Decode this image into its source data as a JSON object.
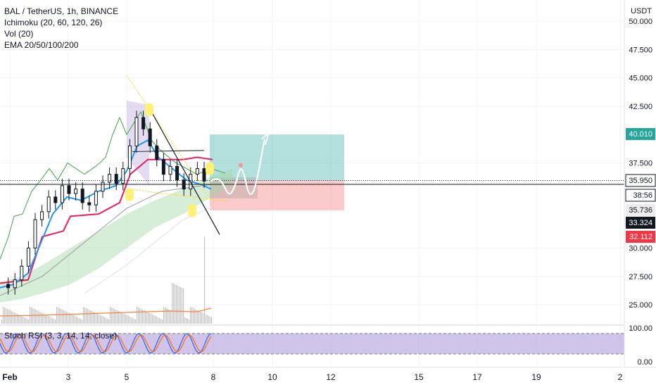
{
  "legend": {
    "symbol": "BAL / TetherUS, 1h, BINANCE",
    "ichimoku": "Ichimoku (20, 60, 120, 26)",
    "vol": "Vol (20)",
    "ema": "EMA 20/50/100/200"
  },
  "rsi_legend": "Stoch RSI (3, 3, 14, 14, close)",
  "currency": "USDT",
  "colors": {
    "background": "#ffffff",
    "up_candle": "#131722",
    "down_candle": "#131722",
    "tenkan": "#2196f3",
    "kijun": "#e91e63",
    "chikou": "#43a047",
    "cloud_up": "#a5d6a7",
    "cloud_down": "#ef9a9a",
    "ema20": "#2196f3",
    "ema200": "#e0e0e0",
    "volume": "#9e9e9e",
    "volume_ma": "#ff7f3f",
    "long_profit_zone": "#26a69a",
    "long_risk_zone": "#ef5350",
    "pattern_marker": "#fff176",
    "rsi_band": "#b39ddb",
    "rsi_k": "#2962ff",
    "rsi_d": "#ff6d00",
    "badge_green": "#26a69a",
    "badge_red": "#f23645",
    "badge_black": "#131722"
  },
  "chart_data": {
    "type": "candlestick",
    "title": "BAL / TetherUS, 1h, BINANCE",
    "y_unit": "USDT",
    "y_ticks": [
      "50.000",
      "47.500",
      "45.000",
      "42.500",
      "37.500",
      "30.000",
      "27.500",
      "25.000"
    ],
    "ylim": [
      23.5,
      51.0
    ],
    "x_ticks": [
      "Feb",
      "3",
      "5",
      "8",
      "10",
      "12",
      "15",
      "17",
      "19",
      "2"
    ],
    "close_path": [
      [
        0,
        26.8
      ],
      [
        1,
        26.5
      ],
      [
        2,
        27.2
      ],
      [
        3,
        28.4
      ],
      [
        4,
        30.0
      ],
      [
        5,
        32.5
      ],
      [
        6,
        33.2
      ],
      [
        7,
        34.5
      ],
      [
        8,
        34.0
      ],
      [
        9,
        35.5
      ],
      [
        10,
        34.8
      ],
      [
        11,
        35.2
      ],
      [
        12,
        34.0
      ],
      [
        13,
        33.8
      ],
      [
        14,
        35.0
      ],
      [
        15,
        35.8
      ],
      [
        16,
        36.5
      ],
      [
        17,
        35.7
      ],
      [
        18,
        37.0
      ],
      [
        19,
        39.0
      ],
      [
        20,
        41.5
      ],
      [
        21,
        40.5
      ],
      [
        22,
        39.0
      ],
      [
        23,
        37.8
      ],
      [
        24,
        36.5
      ],
      [
        25,
        37.2
      ],
      [
        26,
        36.0
      ],
      [
        27,
        35.2
      ],
      [
        28,
        36.5
      ],
      [
        29,
        37.0
      ],
      [
        30,
        35.9
      ]
    ],
    "price_labels": [
      {
        "value": "40.010",
        "style": "green"
      },
      {
        "value": "35.950",
        "style": "outline"
      },
      {
        "value": "38:56",
        "style": "outline"
      },
      {
        "value": "35.736",
        "style": "grey"
      },
      {
        "value": "33.324",
        "style": "black"
      },
      {
        "value": "32.112",
        "style": "red"
      }
    ],
    "position": {
      "type": "long",
      "entry": 35.95,
      "target": 40.01,
      "stop": 33.324
    },
    "oscillator": {
      "name": "Stoch RSI",
      "y_ticks": [
        "100.00",
        "0.00"
      ],
      "band": [
        20,
        80
      ]
    },
    "grid": true
  }
}
